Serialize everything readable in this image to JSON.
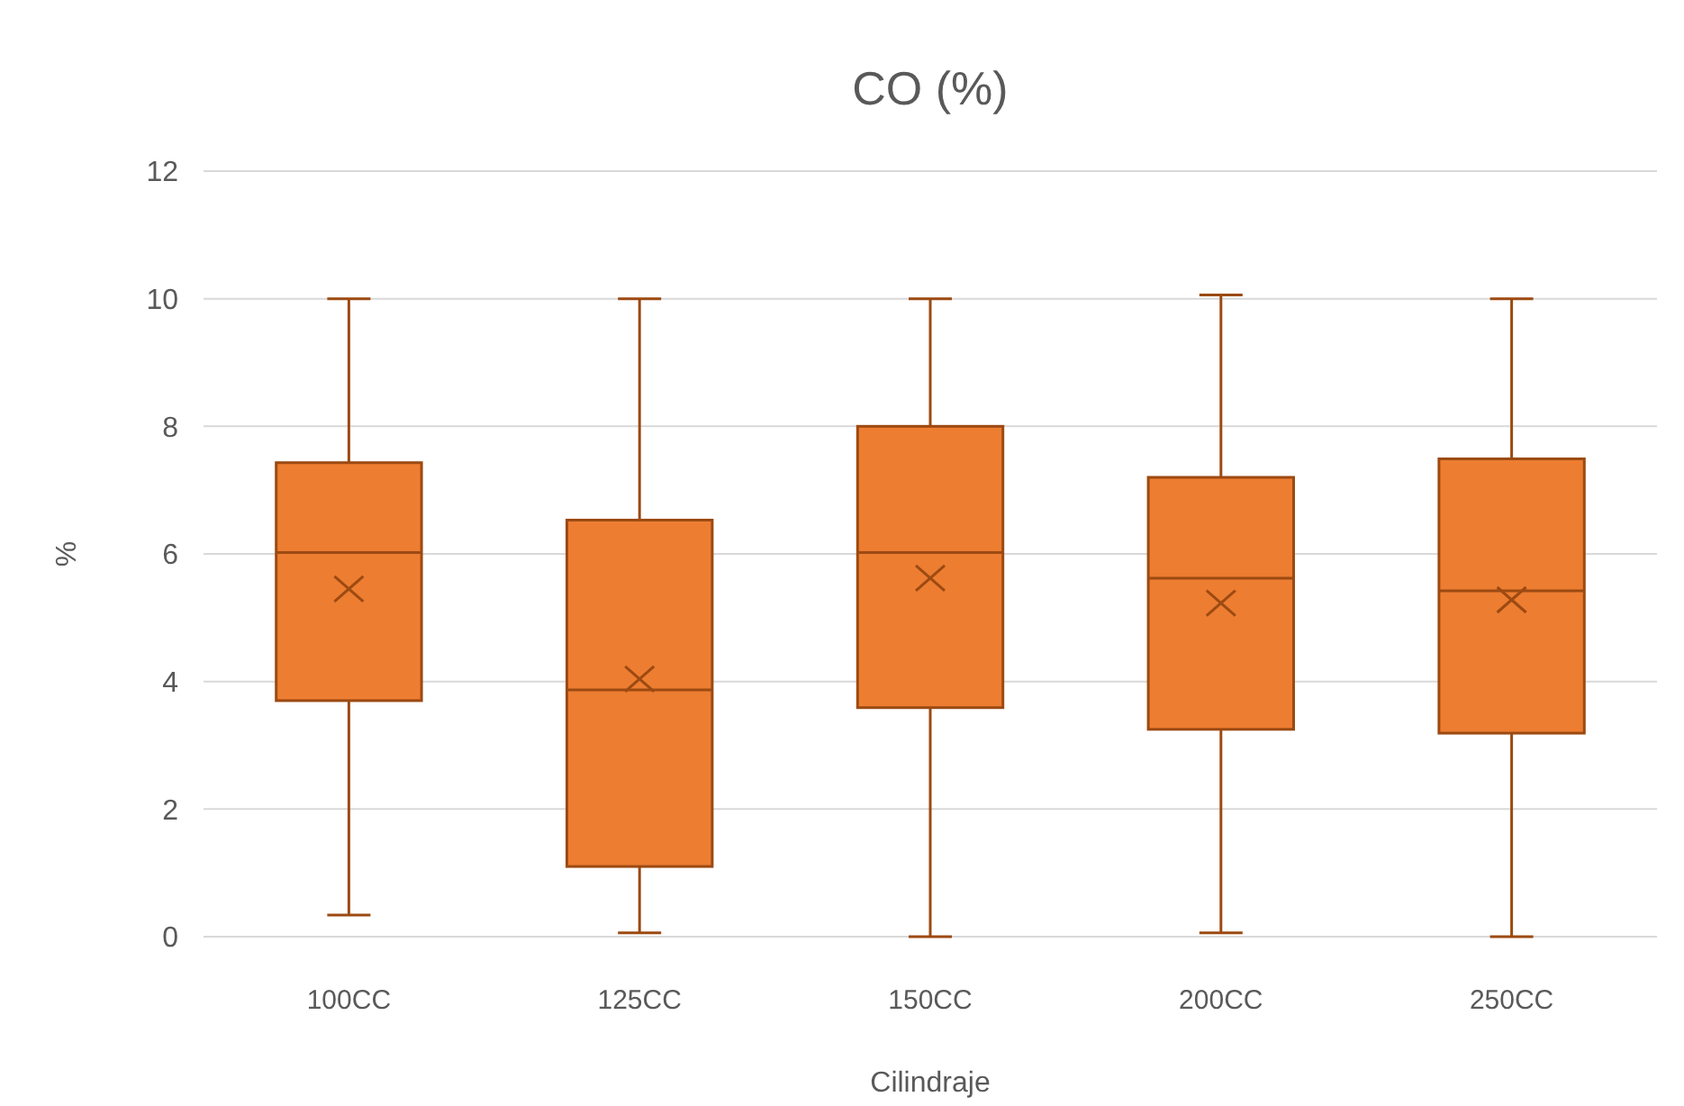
{
  "chart_data": {
    "type": "box",
    "title": "CO (%)",
    "xlabel": "Cilindraje",
    "ylabel": "%",
    "categories": [
      "100CC",
      "125CC",
      "150CC",
      "200CC",
      "250CC"
    ],
    "boxes": [
      {
        "low": 0.34,
        "q1": 3.7,
        "median": 6.02,
        "q3": 7.43,
        "high": 10,
        "mean": 5.45
      },
      {
        "low": 0.06,
        "q1": 1.1,
        "median": 3.87,
        "q3": 6.53,
        "high": 10,
        "mean": 4.04
      },
      {
        "low": 0,
        "q1": 3.59,
        "median": 6.02,
        "q3": 8,
        "high": 10,
        "mean": 5.62
      },
      {
        "low": 0.06,
        "q1": 3.25,
        "median": 5.62,
        "q3": 7.2,
        "high": 10.06,
        "mean": 5.23
      },
      {
        "low": 0,
        "q1": 3.19,
        "median": 5.42,
        "q3": 7.49,
        "high": 10,
        "mean": 5.28
      }
    ],
    "color": "#ed7d31",
    "ylim": [
      0,
      12
    ],
    "yticks": [
      0,
      2,
      4,
      6,
      8,
      10,
      12
    ],
    "grid": "y"
  }
}
